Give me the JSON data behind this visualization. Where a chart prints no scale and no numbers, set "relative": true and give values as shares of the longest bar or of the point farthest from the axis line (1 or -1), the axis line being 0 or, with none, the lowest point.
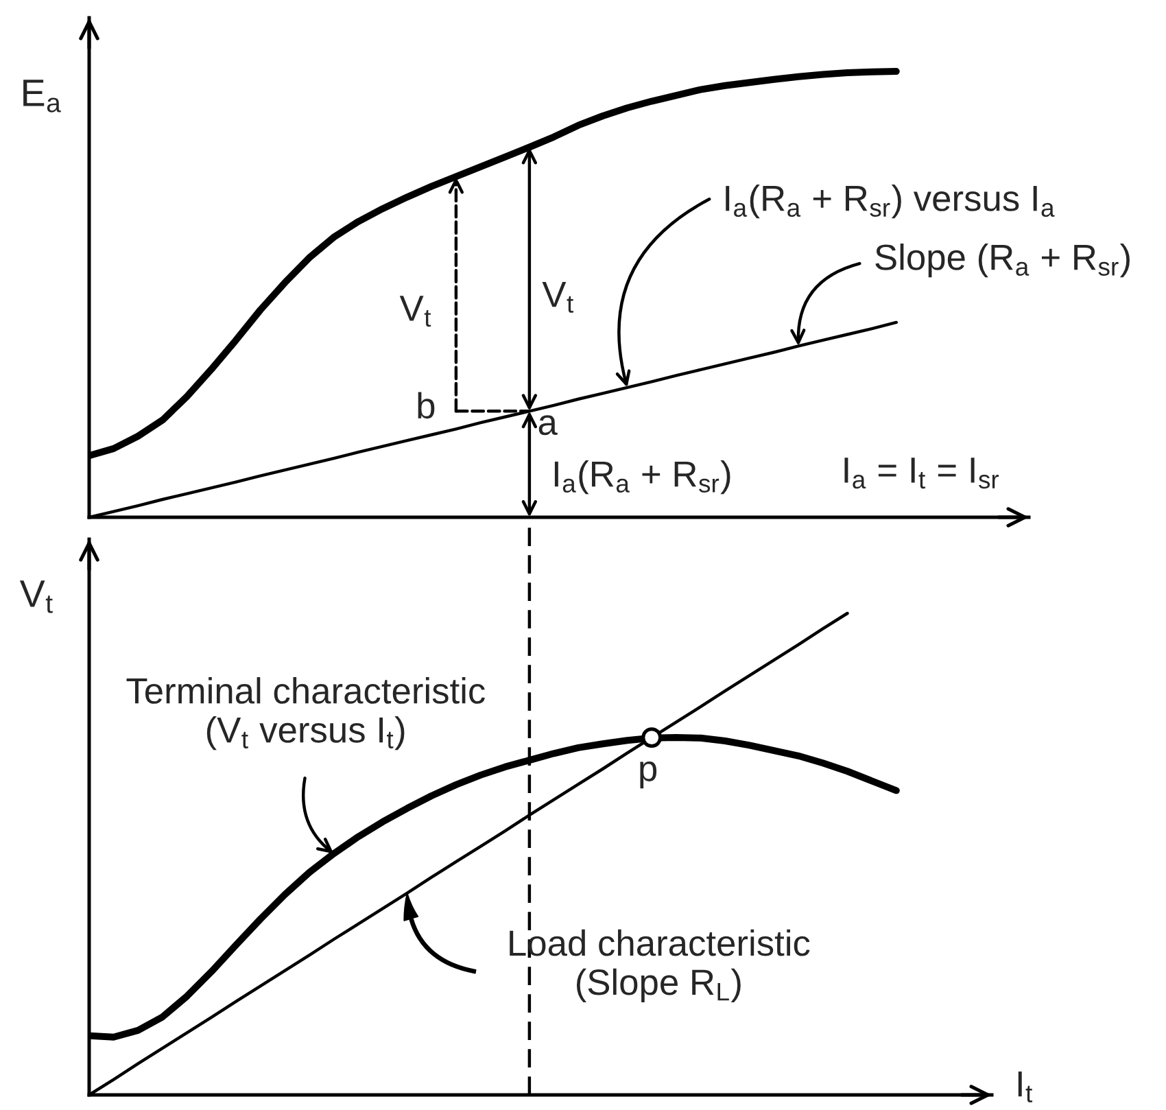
{
  "chart_data": [
    {
      "type": "line",
      "relative": true,
      "ylabel": "E$_{a}$",
      "xlabel": "I$_{a}$ = I$_{t}$ = I$_{sr}$",
      "categories": [
        null,
        null,
        null,
        null,
        null,
        null,
        null,
        null,
        null,
        null,
        null,
        null,
        null,
        null,
        null,
        null,
        null,
        null,
        null,
        null,
        null,
        null,
        null,
        null,
        null,
        null,
        null,
        null,
        null,
        null,
        null,
        null,
        null,
        null
      ],
      "series": [
        {
          "color": "#000000",
          "values": [
            0.138,
            0.154,
            0.182,
            0.218,
            0.271,
            0.332,
            0.397,
            0.465,
            0.526,
            0.582,
            0.628,
            0.663,
            0.692,
            0.718,
            0.742,
            0.764,
            0.786,
            0.808,
            0.83,
            0.853,
            0.879,
            0.9,
            0.918,
            0.933,
            0.946,
            0.959,
            0.968,
            0.975,
            0.982,
            0.988,
            0.993,
            0.997,
            0.999,
            1
          ]
        },
        {
          "name": "I$_{a}$(R$_{a}$ + R$_{sr}$) versus I$_{a}$",
          "color": "#000000",
          "values": [
            0,
            0.013,
            0.026,
            0.04,
            0.053,
            0.066,
            0.079,
            0.093,
            0.106,
            0.119,
            0.132,
            0.146,
            0.159,
            0.172,
            0.185,
            0.198,
            0.212,
            0.225,
            0.238,
            0.251,
            0.265,
            0.278,
            0.291,
            0.304,
            0.318,
            0.331,
            0.344,
            0.357,
            0.37,
            0.384,
            0.397,
            0.41,
            0.423,
            0.437
          ]
        }
      ],
      "annotations": [
        "V$_{t}$",
        "V$_{t}$",
        "Slope (R$_{a}$ + R$_{sr}$)",
        "b",
        "a",
        "I$_{a}$(R$_{a}$ + R$_{sr}$)"
      ]
    },
    {
      "type": "line",
      "relative": true,
      "ylabel": "V$_{t}$",
      "xlabel": "I$_{t}$",
      "categories": [
        null,
        null,
        null,
        null,
        null,
        null,
        null,
        null,
        null,
        null,
        null,
        null,
        null,
        null,
        null,
        null,
        null,
        null,
        null,
        null,
        null,
        null,
        null,
        null,
        null,
        null,
        null,
        null,
        null,
        null,
        null,
        null,
        null,
        null
      ],
      "series": [
        {
          "name": "Terminal characteristic\n(V$_{t}$ versus I$_{t}$)",
          "color": "#000000",
          "values": [
            0.123,
            0.12,
            0.134,
            0.162,
            0.205,
            0.256,
            0.311,
            0.365,
            0.416,
            0.462,
            0.501,
            0.536,
            0.567,
            0.595,
            0.621,
            0.644,
            0.664,
            0.681,
            0.695,
            0.709,
            0.721,
            0.729,
            0.736,
            0.741,
            0.742,
            0.741,
            0.735,
            0.726,
            0.715,
            0.704,
            0.689,
            0.672,
            0.652,
            0.632
          ]
        },
        {
          "name": "Load characteristic\n(Slope R$_{L}$)",
          "color": "#000000",
          "values": [
            0,
            0.032,
            0.065,
            0.097,
            0.129,
            0.161,
            0.194,
            0.226,
            0.258,
            0.29,
            0.323,
            0.355,
            0.387,
            0.419,
            0.452,
            0.484,
            0.516,
            0.548,
            0.581,
            0.613,
            0.645,
            0.677,
            0.71,
            0.742,
            0.774,
            0.806,
            0.839,
            0.871,
            0.903,
            0.935,
            0.968,
            1,
            null,
            null
          ]
        },
        {
          "name": "p",
          "type": "scatter",
          "marker": "circle",
          "color": "#000000",
          "values": [
            null,
            null,
            null,
            null,
            null,
            null,
            null,
            null,
            null,
            null,
            null,
            null,
            null,
            null,
            null,
            null,
            null,
            null,
            null,
            null,
            null,
            null,
            null,
            0.742,
            null,
            null,
            null,
            null,
            null,
            null,
            null,
            null,
            null,
            null
          ]
        }
      ]
    }
  ]
}
